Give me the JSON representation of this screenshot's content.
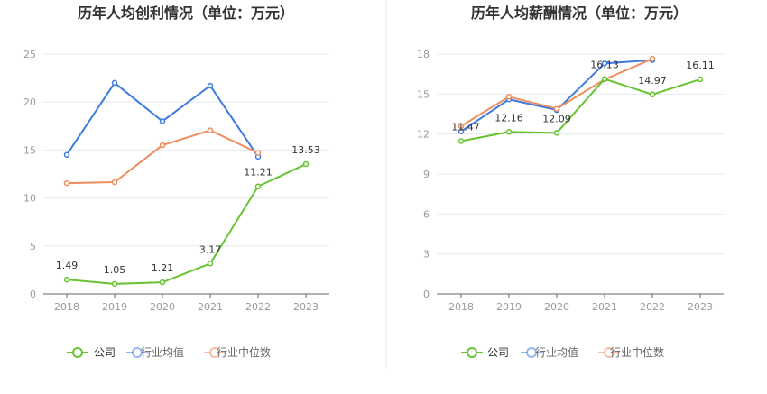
{
  "chart_data": [
    {
      "type": "line",
      "title": "历年人均创利情况（单位：万元）",
      "categories": [
        "2018",
        "2019",
        "2020",
        "2021",
        "2022",
        "2023"
      ],
      "ylim": [
        0,
        25
      ],
      "yticks": [
        "0",
        "5",
        "10",
        "15",
        "20",
        "25"
      ],
      "grid": true,
      "legend_position": "bottom",
      "series": [
        {
          "name": "公司",
          "color": "#66c331",
          "values": [
            1.49,
            1.05,
            1.21,
            3.17,
            11.21,
            13.53
          ],
          "labels": [
            "1.49",
            "1.05",
            "1.21",
            "3.17",
            "11.21",
            "13.53"
          ]
        },
        {
          "name": "行业均值",
          "color": "#3e7be0",
          "values": [
            14.5,
            22.0,
            18.0,
            21.7,
            14.3,
            null
          ]
        },
        {
          "name": "行业中位数",
          "color": "#ef8d5e",
          "values": [
            11.55,
            11.65,
            15.5,
            17.05,
            14.7,
            null
          ]
        }
      ]
    },
    {
      "type": "line",
      "title": "历年人均薪酬情况（单位：万元）",
      "categories": [
        "2018",
        "2019",
        "2020",
        "2021",
        "2022",
        "2023"
      ],
      "ylim": [
        0,
        18
      ],
      "yticks": [
        "0",
        "3",
        "6",
        "9",
        "12",
        "15",
        "18"
      ],
      "grid": true,
      "legend_position": "bottom",
      "series": [
        {
          "name": "公司",
          "color": "#66c331",
          "values": [
            11.47,
            12.16,
            12.09,
            16.13,
            14.97,
            16.11
          ],
          "labels": [
            "11.47",
            "12.16",
            "12.09",
            "16.13",
            "14.97",
            "16.11"
          ]
        },
        {
          "name": "行业均值",
          "color": "#3e7be0",
          "values": [
            12.2,
            14.6,
            13.8,
            17.3,
            17.55,
            null
          ]
        },
        {
          "name": "行业中位数",
          "color": "#ef8d5e",
          "values": [
            12.6,
            14.8,
            13.9,
            16.1,
            17.65,
            null
          ]
        }
      ]
    }
  ]
}
